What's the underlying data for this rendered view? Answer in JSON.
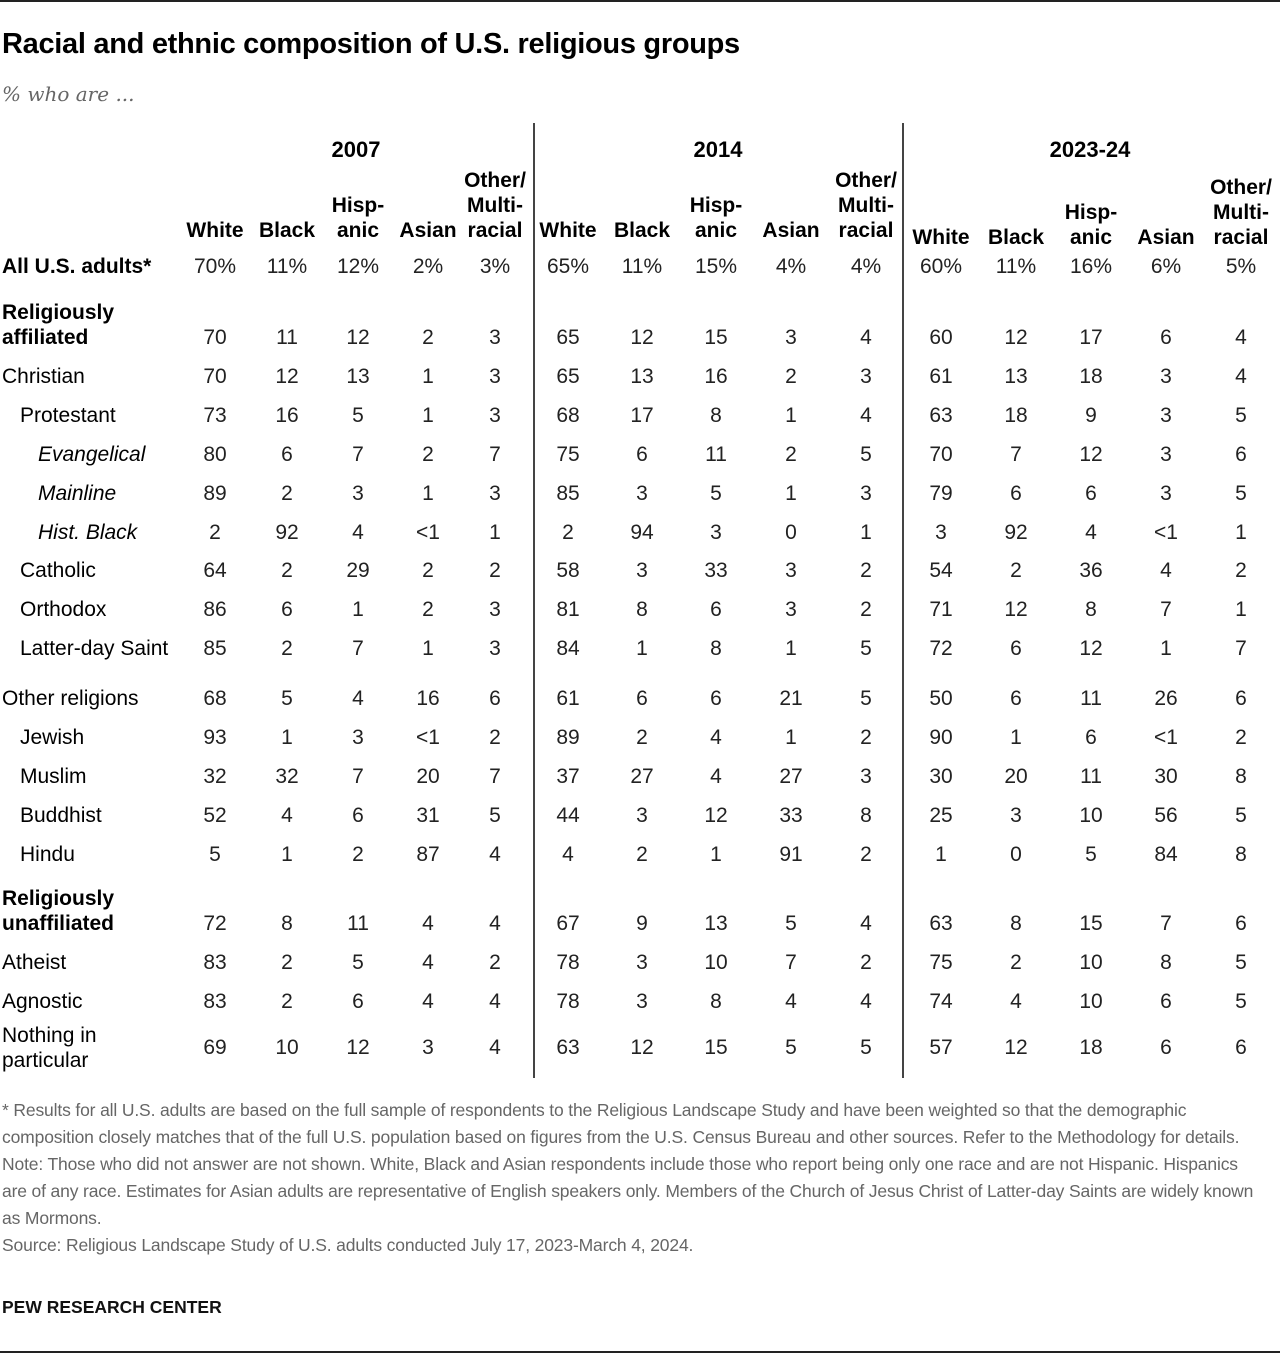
{
  "header": {
    "title": "Racial and ethnic composition of U.S. religious groups",
    "subtitle": "% who are ..."
  },
  "periods": [
    "2007",
    "2014",
    "2023-24"
  ],
  "columns": [
    {
      "line1": "",
      "line2": "",
      "line3": "White"
    },
    {
      "line1": "",
      "line2": "",
      "line3": "Black"
    },
    {
      "line1": "",
      "line2": "Hisp-",
      "line3": "anic"
    },
    {
      "line1": "",
      "line2": "",
      "line3": "Asian"
    },
    {
      "line1": "Other/",
      "line2": "Multi-",
      "line3": "racial"
    }
  ],
  "rows": [
    {
      "label": "All U.S. adults*",
      "style": "bold",
      "indent": 0,
      "values": [
        "70%",
        "11%",
        "12%",
        "2%",
        "3%",
        "65%",
        "11%",
        "15%",
        "4%",
        "4%",
        "60%",
        "11%",
        "16%",
        "6%",
        "5%"
      ]
    },
    {
      "label": "Religiously affiliated",
      "label1": "Religiously",
      "label2": "affiliated",
      "style": "bold",
      "indent": 0,
      "values": [
        "70",
        "11",
        "12",
        "2",
        "3",
        "65",
        "12",
        "15",
        "3",
        "4",
        "60",
        "12",
        "17",
        "6",
        "4"
      ]
    },
    {
      "label": "Christian",
      "style": "normal",
      "indent": 0,
      "values": [
        "70",
        "12",
        "13",
        "1",
        "3",
        "65",
        "13",
        "16",
        "2",
        "3",
        "61",
        "13",
        "18",
        "3",
        "4"
      ]
    },
    {
      "label": "Protestant",
      "style": "normal",
      "indent": 1,
      "values": [
        "73",
        "16",
        "5",
        "1",
        "3",
        "68",
        "17",
        "8",
        "1",
        "4",
        "63",
        "18",
        "9",
        "3",
        "5"
      ]
    },
    {
      "label": "Evangelical",
      "style": "italic",
      "indent": 2,
      "values": [
        "80",
        "6",
        "7",
        "2",
        "7",
        "75",
        "6",
        "11",
        "2",
        "5",
        "70",
        "7",
        "12",
        "3",
        "6"
      ]
    },
    {
      "label": "Mainline",
      "style": "italic",
      "indent": 2,
      "values": [
        "89",
        "2",
        "3",
        "1",
        "3",
        "85",
        "3",
        "5",
        "1",
        "3",
        "79",
        "6",
        "6",
        "3",
        "5"
      ]
    },
    {
      "label": "Hist. Black",
      "style": "italic",
      "indent": 2,
      "values": [
        "2",
        "92",
        "4",
        "<1",
        "1",
        "2",
        "94",
        "3",
        "0",
        "1",
        "3",
        "92",
        "4",
        "<1",
        "1"
      ]
    },
    {
      "label": "Catholic",
      "style": "normal",
      "indent": 1,
      "values": [
        "64",
        "2",
        "29",
        "2",
        "2",
        "58",
        "3",
        "33",
        "3",
        "2",
        "54",
        "2",
        "36",
        "4",
        "2"
      ]
    },
    {
      "label": "Orthodox",
      "style": "normal",
      "indent": 1,
      "values": [
        "86",
        "6",
        "1",
        "2",
        "3",
        "81",
        "8",
        "6",
        "3",
        "2",
        "71",
        "12",
        "8",
        "7",
        "1"
      ]
    },
    {
      "label": "Latter-day Saint",
      "style": "normal",
      "indent": 1,
      "values": [
        "85",
        "2",
        "7",
        "1",
        "3",
        "84",
        "1",
        "8",
        "1",
        "5",
        "72",
        "6",
        "12",
        "1",
        "7"
      ]
    },
    {
      "label": "Other religions",
      "style": "normal",
      "indent": 0,
      "values": [
        "68",
        "5",
        "4",
        "16",
        "6",
        "61",
        "6",
        "6",
        "21",
        "5",
        "50",
        "6",
        "11",
        "26",
        "6"
      ]
    },
    {
      "label": "Jewish",
      "style": "normal",
      "indent": 1,
      "values": [
        "93",
        "1",
        "3",
        "<1",
        "2",
        "89",
        "2",
        "4",
        "1",
        "2",
        "90",
        "1",
        "6",
        "<1",
        "2"
      ]
    },
    {
      "label": "Muslim",
      "style": "normal",
      "indent": 1,
      "values": [
        "32",
        "32",
        "7",
        "20",
        "7",
        "37",
        "27",
        "4",
        "27",
        "3",
        "30",
        "20",
        "11",
        "30",
        "8"
      ]
    },
    {
      "label": "Buddhist",
      "style": "normal",
      "indent": 1,
      "values": [
        "52",
        "4",
        "6",
        "31",
        "5",
        "44",
        "3",
        "12",
        "33",
        "8",
        "25",
        "3",
        "10",
        "56",
        "5"
      ]
    },
    {
      "label": "Hindu",
      "style": "normal",
      "indent": 1,
      "values": [
        "5",
        "1",
        "2",
        "87",
        "4",
        "4",
        "2",
        "1",
        "91",
        "2",
        "1",
        "0",
        "5",
        "84",
        "8"
      ]
    },
    {
      "label": "Religiously unaffiliated",
      "label1": "Religiously",
      "label2": "unaffiliated",
      "style": "bold",
      "indent": 0,
      "values": [
        "72",
        "8",
        "11",
        "4",
        "4",
        "67",
        "9",
        "13",
        "5",
        "4",
        "63",
        "8",
        "15",
        "7",
        "6"
      ]
    },
    {
      "label": "Atheist",
      "style": "normal",
      "indent": 0,
      "values": [
        "83",
        "2",
        "5",
        "4",
        "2",
        "78",
        "3",
        "10",
        "7",
        "2",
        "75",
        "2",
        "10",
        "8",
        "5"
      ]
    },
    {
      "label": "Agnostic",
      "style": "normal",
      "indent": 0,
      "values": [
        "83",
        "2",
        "6",
        "4",
        "4",
        "78",
        "3",
        "8",
        "4",
        "4",
        "74",
        "4",
        "10",
        "6",
        "5"
      ]
    },
    {
      "label": "Nothing in particular",
      "label1": "Nothing in",
      "label2": "particular",
      "style": "normal",
      "indent": 0,
      "values": [
        "69",
        "10",
        "12",
        "3",
        "4",
        "63",
        "12",
        "15",
        "5",
        "5",
        "57",
        "12",
        "18",
        "6",
        "6"
      ]
    }
  ],
  "notes": {
    "asterisk": "* Results for all U.S. adults are based on the full sample of respondents to the Religious Landscape Study and have been weighted so that the demographic composition closely matches that of the full U.S. population based on figures from the U.S. Census Bureau and other sources. Refer to the Methodology for details.",
    "note": "Note: Those who did not answer are not shown. White, Black and Asian respondents include those who report being only one race and are not Hispanic. Hispanics are of any race. Estimates for Asian adults are representative of English speakers only. Members of the Church of Jesus Christ of Latter-day Saints are widely known as Mormons.",
    "source": "Source: Religious Landscape Study of U.S. adults conducted July 17, 2023-March 4, 2024."
  },
  "brand": "PEW RESEARCH CENTER",
  "colors": {
    "text": "#000000",
    "notes": "#666666",
    "rule": "#222222",
    "divider": "#444444"
  },
  "chart_data": {
    "type": "table",
    "title": "Racial and ethnic composition of U.S. religious groups",
    "subtitle": "% who are ...",
    "column_groups": [
      "2007",
      "2014",
      "2023-24"
    ],
    "columns": [
      "White",
      "Black",
      "Hispanic",
      "Asian",
      "Other/Multiracial"
    ],
    "rows": [
      {
        "group": "All U.S. adults*",
        "2007": [
          70,
          11,
          12,
          2,
          3
        ],
        "2014": [
          65,
          11,
          15,
          4,
          4
        ],
        "2023-24": [
          60,
          11,
          16,
          6,
          5
        ]
      },
      {
        "group": "Religiously affiliated",
        "2007": [
          70,
          11,
          12,
          2,
          3
        ],
        "2014": [
          65,
          12,
          15,
          3,
          4
        ],
        "2023-24": [
          60,
          12,
          17,
          6,
          4
        ]
      },
      {
        "group": "Christian",
        "2007": [
          70,
          12,
          13,
          1,
          3
        ],
        "2014": [
          65,
          13,
          16,
          2,
          3
        ],
        "2023-24": [
          61,
          13,
          18,
          3,
          4
        ]
      },
      {
        "group": "Protestant",
        "2007": [
          73,
          16,
          5,
          1,
          3
        ],
        "2014": [
          68,
          17,
          8,
          1,
          4
        ],
        "2023-24": [
          63,
          18,
          9,
          3,
          5
        ]
      },
      {
        "group": "Evangelical",
        "2007": [
          80,
          6,
          7,
          2,
          7
        ],
        "2014": [
          75,
          6,
          11,
          2,
          5
        ],
        "2023-24": [
          70,
          7,
          12,
          3,
          6
        ]
      },
      {
        "group": "Mainline",
        "2007": [
          89,
          2,
          3,
          1,
          3
        ],
        "2014": [
          85,
          3,
          5,
          1,
          3
        ],
        "2023-24": [
          79,
          6,
          6,
          3,
          5
        ]
      },
      {
        "group": "Hist. Black",
        "2007": [
          2,
          92,
          4,
          "<1",
          1
        ],
        "2014": [
          2,
          94,
          3,
          0,
          1
        ],
        "2023-24": [
          3,
          92,
          4,
          "<1",
          1
        ]
      },
      {
        "group": "Catholic",
        "2007": [
          64,
          2,
          29,
          2,
          2
        ],
        "2014": [
          58,
          3,
          33,
          3,
          2
        ],
        "2023-24": [
          54,
          2,
          36,
          4,
          2
        ]
      },
      {
        "group": "Orthodox",
        "2007": [
          86,
          6,
          1,
          2,
          3
        ],
        "2014": [
          81,
          8,
          6,
          3,
          2
        ],
        "2023-24": [
          71,
          12,
          8,
          7,
          1
        ]
      },
      {
        "group": "Latter-day Saint",
        "2007": [
          85,
          2,
          7,
          1,
          3
        ],
        "2014": [
          84,
          1,
          8,
          1,
          5
        ],
        "2023-24": [
          72,
          6,
          12,
          1,
          7
        ]
      },
      {
        "group": "Other religions",
        "2007": [
          68,
          5,
          4,
          16,
          6
        ],
        "2014": [
          61,
          6,
          6,
          21,
          5
        ],
        "2023-24": [
          50,
          6,
          11,
          26,
          6
        ]
      },
      {
        "group": "Jewish",
        "2007": [
          93,
          1,
          3,
          "<1",
          2
        ],
        "2014": [
          89,
          2,
          4,
          1,
          2
        ],
        "2023-24": [
          90,
          1,
          6,
          "<1",
          2
        ]
      },
      {
        "group": "Muslim",
        "2007": [
          32,
          32,
          7,
          20,
          7
        ],
        "2014": [
          37,
          27,
          4,
          27,
          3
        ],
        "2023-24": [
          30,
          20,
          11,
          30,
          8
        ]
      },
      {
        "group": "Buddhist",
        "2007": [
          52,
          4,
          6,
          31,
          5
        ],
        "2014": [
          44,
          3,
          12,
          33,
          8
        ],
        "2023-24": [
          25,
          3,
          10,
          56,
          5
        ]
      },
      {
        "group": "Hindu",
        "2007": [
          5,
          1,
          2,
          87,
          4
        ],
        "2014": [
          4,
          2,
          1,
          91,
          2
        ],
        "2023-24": [
          1,
          0,
          5,
          84,
          8
        ]
      },
      {
        "group": "Religiously unaffiliated",
        "2007": [
          72,
          8,
          11,
          4,
          4
        ],
        "2014": [
          67,
          9,
          13,
          5,
          4
        ],
        "2023-24": [
          63,
          8,
          15,
          7,
          6
        ]
      },
      {
        "group": "Atheist",
        "2007": [
          83,
          2,
          5,
          4,
          2
        ],
        "2014": [
          78,
          3,
          10,
          7,
          2
        ],
        "2023-24": [
          75,
          2,
          10,
          8,
          5
        ]
      },
      {
        "group": "Agnostic",
        "2007": [
          83,
          2,
          6,
          4,
          4
        ],
        "2014": [
          78,
          3,
          8,
          4,
          4
        ],
        "2023-24": [
          74,
          4,
          10,
          6,
          5
        ]
      },
      {
        "group": "Nothing in particular",
        "2007": [
          69,
          10,
          12,
          3,
          4
        ],
        "2014": [
          63,
          12,
          15,
          5,
          5
        ],
        "2023-24": [
          57,
          12,
          18,
          6,
          6
        ]
      }
    ],
    "units": "percent"
  }
}
